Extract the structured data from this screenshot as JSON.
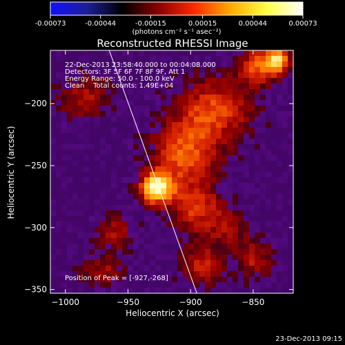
{
  "colorbar": {
    "ticks": [
      "-0.00073",
      "-0.00044",
      "-0.00015",
      "0.00015",
      "0.00044",
      "0.00073"
    ],
    "unit_label": "(photons cm⁻² s⁻¹ asec⁻²)",
    "range": [
      -0.00073,
      0.00073
    ],
    "colors": [
      "#1010ff",
      "#1e1e9a",
      "#000000",
      "#8a0000",
      "#ff2a00",
      "#ffaa00",
      "#ffff44",
      "#ffffff"
    ]
  },
  "chart_data": {
    "type": "heatmap",
    "title": "Reconstructed RHESSI Image",
    "xlabel": "Heliocentric X (arcsec)",
    "ylabel": "Heliocentric Y (arcsec)",
    "xlim": [
      -1012,
      -818
    ],
    "ylim": [
      -353,
      -157
    ],
    "x_ticks": [
      -1000,
      -950,
      -900,
      -850
    ],
    "y_ticks": [
      -200,
      -250,
      -300,
      -350
    ],
    "x_tick_labels": [
      "−1000",
      "−950",
      "−900",
      "−850"
    ],
    "y_tick_labels": [
      "−200",
      "−250",
      "−300",
      "−350"
    ],
    "info_lines": [
      "22-Dec-2013 23:58:40.000 to 00:04:08.000",
      "Detectors: 3F 5F 6F 7F 8F 9F, Att 1",
      "Energy Range: 50.0 - 100.0 keV",
      "Clean    Total counts: 1.49E+04"
    ],
    "peak_label": "Position of Peak = [-927,-268]",
    "peak": {
      "x": -927,
      "y": -268
    },
    "sources": [
      {
        "x": -927,
        "y": -268,
        "amp": 1.0,
        "sx": 9,
        "sy": 9
      },
      {
        "x": -905,
        "y": -240,
        "amp": 0.55,
        "sx": 18,
        "sy": 20
      },
      {
        "x": -880,
        "y": -205,
        "amp": 0.5,
        "sx": 20,
        "sy": 18
      },
      {
        "x": -845,
        "y": -170,
        "amp": 0.55,
        "sx": 12,
        "sy": 10
      },
      {
        "x": -830,
        "y": -165,
        "amp": 0.7,
        "sx": 7,
        "sy": 7
      },
      {
        "x": -895,
        "y": -285,
        "amp": 0.45,
        "sx": 14,
        "sy": 14
      },
      {
        "x": -985,
        "y": -195,
        "amp": 0.35,
        "sx": 14,
        "sy": 12
      },
      {
        "x": -960,
        "y": -305,
        "amp": 0.35,
        "sx": 10,
        "sy": 10
      },
      {
        "x": -890,
        "y": -330,
        "amp": 0.4,
        "sx": 12,
        "sy": 12
      },
      {
        "x": -850,
        "y": -325,
        "amp": 0.35,
        "sx": 10,
        "sy": 12
      },
      {
        "x": -970,
        "y": -335,
        "amp": 0.3,
        "sx": 12,
        "sy": 8
      },
      {
        "x": -870,
        "y": -300,
        "amp": 0.3,
        "sx": 10,
        "sy": 10
      }
    ],
    "limb_line": [
      [
        -965,
        -157
      ],
      [
        -895,
        -353
      ]
    ]
  },
  "footer": {
    "timestamp": "23-Dec-2013 09:15"
  }
}
